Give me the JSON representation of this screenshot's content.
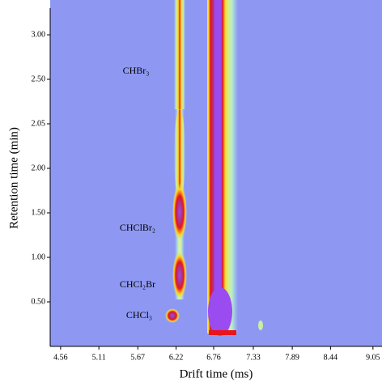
{
  "chart_data": {
    "type": "heatmap",
    "xlabel": "Drift time (ms)",
    "ylabel": "Retention time (min)",
    "xlim": [
      4.41,
      9.18
    ],
    "xticks": [
      4.56,
      5.11,
      5.67,
      6.22,
      6.76,
      7.33,
      7.89,
      8.44,
      9.05
    ],
    "yticks": [
      {
        "value": 3.0,
        "label": "3.00"
      },
      {
        "value": 2.5,
        "label": "2.50"
      },
      {
        "value": 2.05,
        "label": "2.05"
      },
      {
        "value": 2.0,
        "label": "2.00"
      },
      {
        "value": 1.5,
        "label": "1.50"
      },
      {
        "value": 1.0,
        "label": "1.00"
      },
      {
        "value": 0.5,
        "label": "0.50"
      }
    ],
    "background": "#8e98f2",
    "annotations": [
      {
        "text": "CHBr₃"
      },
      {
        "text": "CHClBr₂"
      },
      {
        "text": "CHCl₂Br"
      },
      {
        "text": "CHCl₃"
      }
    ]
  }
}
